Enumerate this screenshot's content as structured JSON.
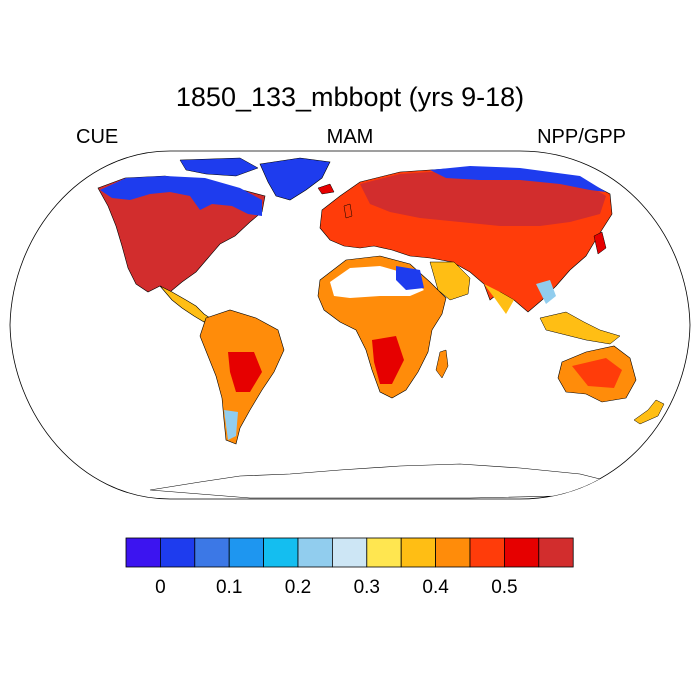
{
  "figure": {
    "title": "1850_133_mbbopt (yrs 9-18)",
    "left_string": "CUE",
    "center_string": "MAM",
    "right_string": "NPP/GPP"
  },
  "map": {
    "projection": "Robinson",
    "variable": "NPP/GPP",
    "season": "MAM"
  },
  "colorbar": {
    "orientation": "horizontal",
    "bins": [
      {
        "color": "#3c14f0"
      },
      {
        "color": "#1e3cee"
      },
      {
        "color": "#3c78e6"
      },
      {
        "color": "#1e96f0"
      },
      {
        "color": "#14bef0"
      },
      {
        "color": "#91cdee"
      },
      {
        "color": "#cde6f5"
      },
      {
        "color": "#ffe650"
      },
      {
        "color": "#ffbe14"
      },
      {
        "color": "#ff8c0a"
      },
      {
        "color": "#ff3c0a"
      },
      {
        "color": "#e60000"
      },
      {
        "color": "#d22d2d"
      }
    ],
    "tick_labels": [
      "0",
      "0.1",
      "0.2",
      "0.3",
      "0.4",
      "0.5"
    ]
  },
  "palette": {
    "ocean": "#ffffff",
    "outline": "#000000",
    "no_data": "#ffffff"
  }
}
